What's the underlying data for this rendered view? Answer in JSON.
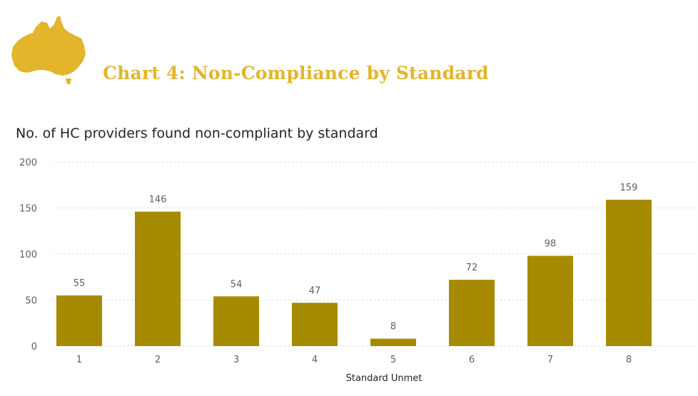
{
  "header": {
    "logo_icon": "australia-map-icon",
    "title": "Chart 4: Non-Compliance by Standard"
  },
  "colors": {
    "accent": "#e3b52a",
    "bar": "#a68a00",
    "grid": "#c8c6c4"
  },
  "chart_data": {
    "type": "bar",
    "title": "No. of HC providers found non-compliant by standard",
    "xlabel": "Standard Unmet",
    "ylabel": "",
    "categories": [
      "1",
      "2",
      "3",
      "4",
      "5",
      "6",
      "7",
      "8"
    ],
    "values": [
      55,
      146,
      54,
      47,
      8,
      72,
      98,
      159
    ],
    "ylim": [
      0,
      200
    ],
    "yticks": [
      0,
      50,
      100,
      150,
      200
    ],
    "grid": true,
    "data_labels": true
  }
}
